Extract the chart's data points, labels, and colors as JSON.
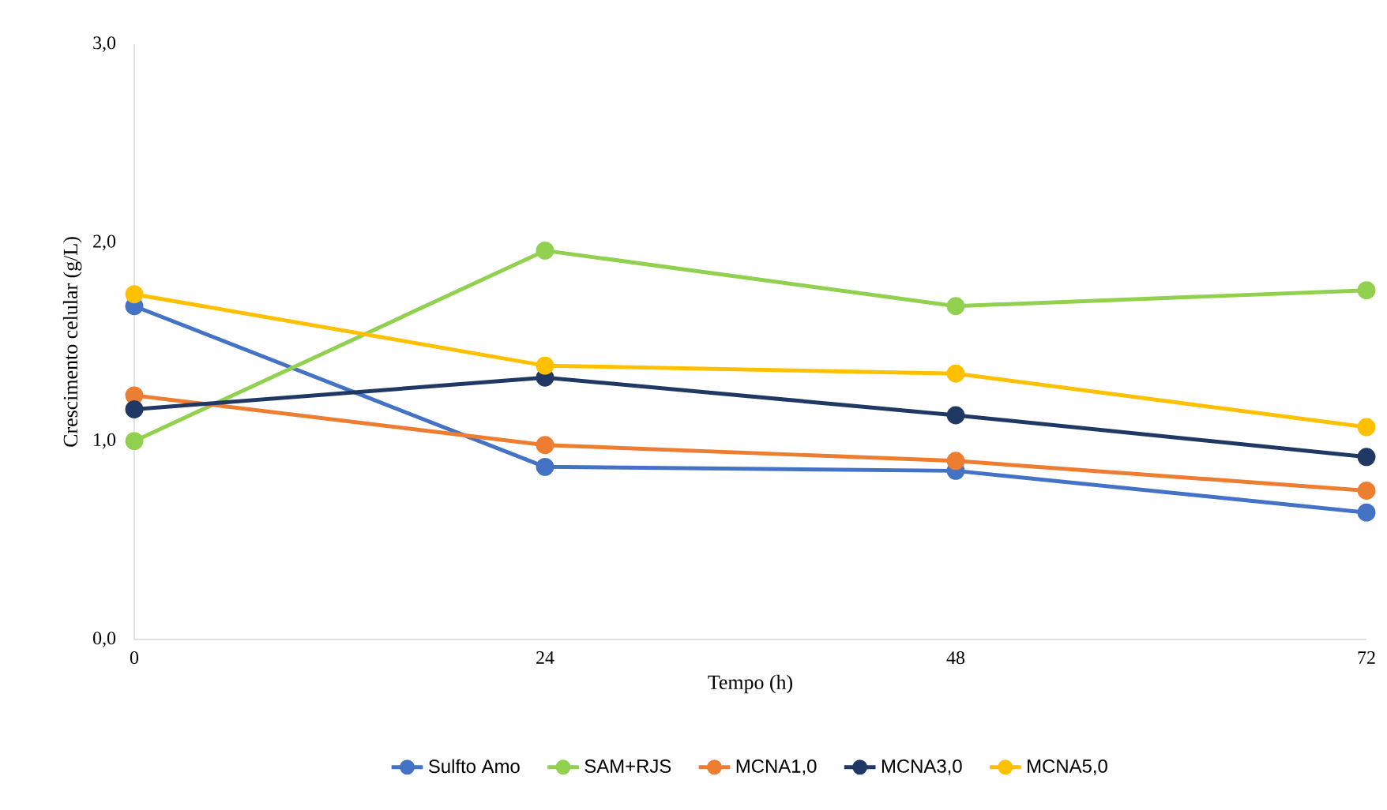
{
  "chart_data": {
    "type": "line",
    "xlabel": "Tempo (h)",
    "ylabel": "Crescimento celular (g/L)",
    "x": [
      0,
      24,
      48,
      72
    ],
    "xlim": [
      0,
      72
    ],
    "xticks": [
      0,
      24,
      48,
      72
    ],
    "ylim": [
      0,
      3
    ],
    "yticks": [
      {
        "value": 0,
        "label": "0,0"
      },
      {
        "value": 1,
        "label": "1,0"
      },
      {
        "value": 2,
        "label": "2,0"
      },
      {
        "value": 3,
        "label": "3,0"
      }
    ],
    "series": [
      {
        "name": "Sulfto Amo",
        "color": "#4472c4",
        "values": [
          1.68,
          0.87,
          0.85,
          0.64
        ]
      },
      {
        "name": "SAM+RJS",
        "color": "#92d050",
        "values": [
          1.0,
          1.96,
          1.68,
          1.76
        ]
      },
      {
        "name": "MCNA1,0",
        "color": "#ed7d31",
        "values": [
          1.23,
          0.98,
          0.9,
          0.75
        ]
      },
      {
        "name": "MCNA3,0",
        "color": "#203864",
        "values": [
          1.16,
          1.32,
          1.13,
          0.92
        ]
      },
      {
        "name": "MCNA5,0",
        "color": "#ffc000",
        "values": [
          1.74,
          1.38,
          1.34,
          1.07
        ]
      }
    ],
    "legend": "bottom",
    "marker": "circle",
    "line_style": "solid",
    "grid": false
  }
}
